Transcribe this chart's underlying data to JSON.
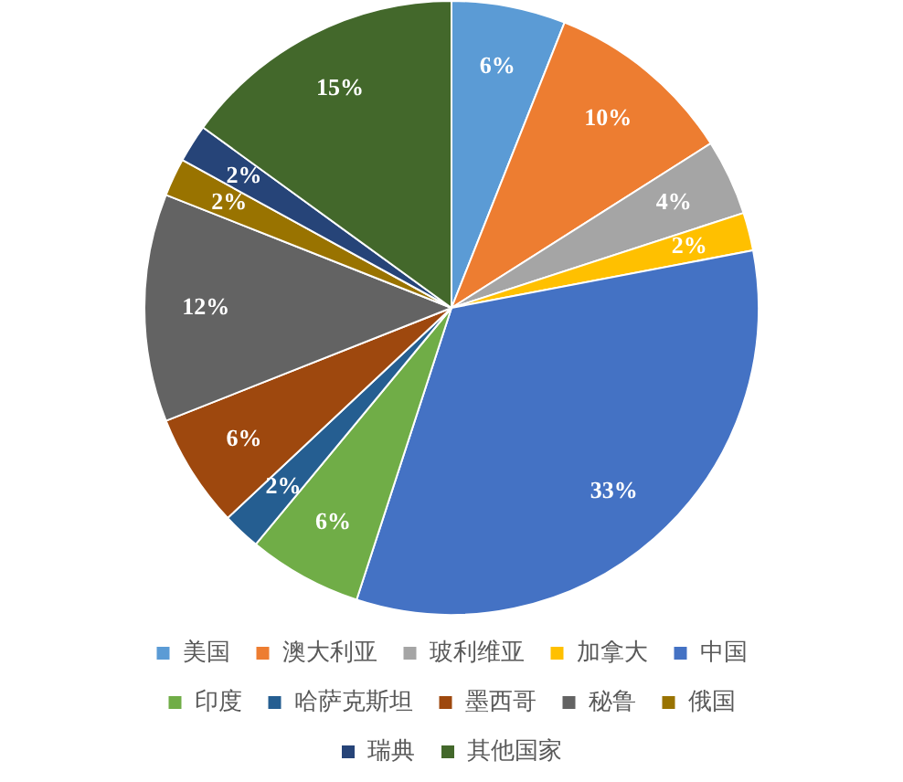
{
  "chart_data": {
    "type": "pie",
    "categories": [
      "美国",
      "澳大利亚",
      "玻利维亚",
      "加拿大",
      "中国",
      "印度",
      "哈萨克斯坦",
      "墨西哥",
      "秘鲁",
      "俄国",
      "瑞典",
      "其他国家"
    ],
    "values": [
      6,
      10,
      4,
      2,
      33,
      6,
      2,
      6,
      12,
      2,
      2,
      15
    ],
    "value_labels": [
      "6%",
      "10%",
      "4%",
      "2%",
      "33%",
      "6%",
      "2%",
      "6%",
      "12%",
      "2%",
      "2%",
      "15%"
    ],
    "colors": [
      "#5b9bd5",
      "#ed7d31",
      "#a5a5a5",
      "#ffc000",
      "#4472c4",
      "#70ad47",
      "#255e91",
      "#9e480e",
      "#636363",
      "#997300",
      "#264478",
      "#43682b"
    ],
    "legend": "bottom"
  }
}
